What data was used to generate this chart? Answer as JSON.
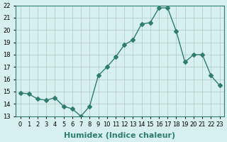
{
  "x": [
    0,
    1,
    2,
    3,
    4,
    5,
    6,
    7,
    8,
    9,
    10,
    11,
    12,
    13,
    14,
    15,
    16,
    17,
    18,
    19,
    20,
    21,
    22,
    23
  ],
  "y": [
    14.9,
    14.8,
    14.4,
    14.3,
    14.5,
    13.8,
    13.6,
    13.0,
    13.8,
    16.3,
    17.0,
    17.8,
    18.8,
    19.2,
    20.5,
    20.6,
    21.8,
    21.8,
    19.9,
    17.4,
    18.0,
    18.0,
    16.3,
    15.5
  ],
  "line_color": "#2e7d6e",
  "marker": "D",
  "marker_size": 3,
  "bg_color": "#d6f0ef",
  "grid_color": "#b0c8c5",
  "xlabel": "Humidex (Indice chaleur)",
  "ylim": [
    13,
    22
  ],
  "xlim": [
    -0.5,
    23.5
  ],
  "yticks": [
    13,
    14,
    15,
    16,
    17,
    18,
    19,
    20,
    21,
    22
  ],
  "xticks": [
    0,
    1,
    2,
    3,
    4,
    5,
    6,
    7,
    8,
    9,
    10,
    11,
    12,
    13,
    14,
    15,
    16,
    17,
    18,
    19,
    20,
    21,
    22,
    23
  ],
  "tick_fontsize": 6,
  "xlabel_fontsize": 8
}
